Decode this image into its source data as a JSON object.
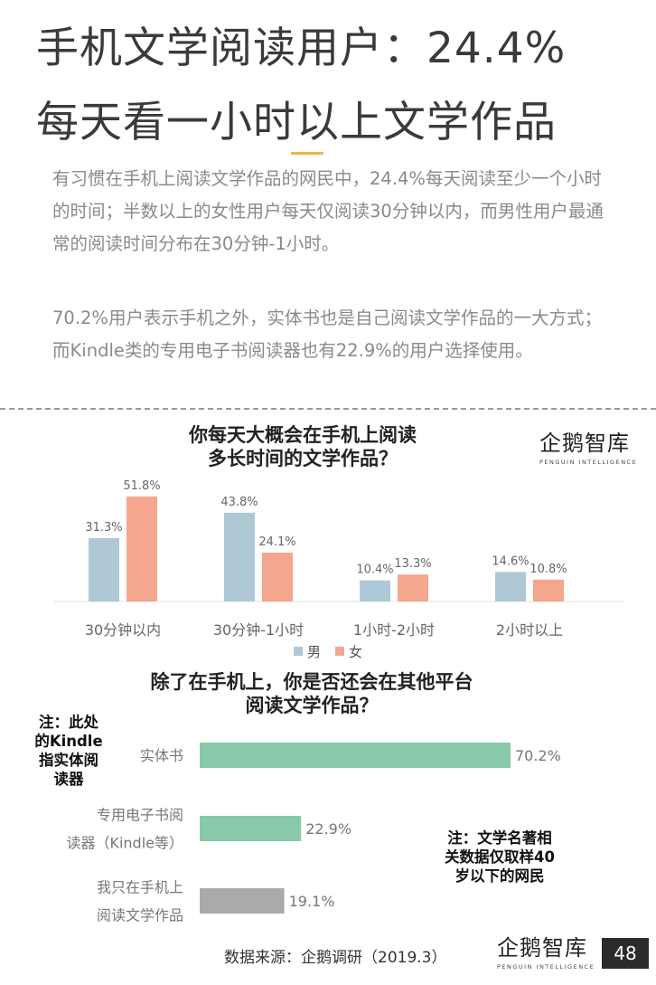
{
  "title_line1": "手机文学阅读用户：24.4%",
  "title_line2": "每天看一小时以上文学作品",
  "paragraph1": "有习惯在手机上阅读文学作品的网民中，24.4%每天阅读至少一个小时的时间；半数以上的女性用户每天仅阅读30分钟以内，而男性用户最通常的阅读时间分布在30分钟-1小时。",
  "paragraph2": "70.2%用户表示手机之外，实体书也是自己阅读文学作品的一大方式；而Kindle类的专用电子书阅读器也有22.9%的用户选择使用。",
  "logo": {
    "main": "企鹅智库",
    "sub": "PENGUIN INTELLIGENCE"
  },
  "chart_data": [
    {
      "type": "bar",
      "title": "你每天大概会在手机上阅读多长时间的文学作品？",
      "title_lines": [
        "你每天大概会在手机上阅读",
        "多长时间的文学作品？"
      ],
      "categories": [
        "30分钟以内",
        "30分钟-1小时",
        "1小时-2小时",
        "2小时以上"
      ],
      "series": [
        {
          "name": "男",
          "values": [
            31.3,
            43.8,
            10.4,
            14.6
          ],
          "labels": [
            "31.3%",
            "43.8%",
            "10.4%",
            "14.6%"
          ],
          "color": "#aec8d6"
        },
        {
          "name": "女",
          "values": [
            51.8,
            24.1,
            13.3,
            10.8
          ],
          "labels": [
            "51.8%",
            "24.1%",
            "13.3%",
            "10.8%"
          ],
          "color": "#f5a68f"
        }
      ],
      "ylim": [
        0,
        60
      ],
      "legend": "bottom"
    },
    {
      "type": "bar",
      "orientation": "horizontal",
      "title": "除了在手机上，你是否还会在其他平台阅读文学作品？",
      "title_lines": [
        "除了在手机上，你是否还会在其他平台",
        "阅读文学作品？"
      ],
      "categories": [
        [
          "实体书"
        ],
        [
          "专用电子书阅",
          "读器（Kindle等）"
        ],
        [
          "我只在手机上",
          "阅读文学作品"
        ]
      ],
      "values": [
        70.2,
        22.9,
        19.1
      ],
      "labels": [
        "70.2%",
        "22.9%",
        "19.1%"
      ],
      "colors": [
        "#88c9a9",
        "#88c9a9",
        "#aaaaaa"
      ],
      "xlim": [
        0,
        100
      ]
    }
  ],
  "note1": "注：此处的Kindle指实体阅读器",
  "note1_lines": [
    "注：此处",
    "的Kindle",
    "指实体阅",
    "读器"
  ],
  "note2": "注：文学名著相关数据仅取样40岁以下的网民",
  "note2_lines": [
    "注：文学名著相",
    "关数据仅取样40",
    "岁以下的网民"
  ],
  "source": "数据来源：企鹅调研（2019.3）",
  "page_number": "48"
}
